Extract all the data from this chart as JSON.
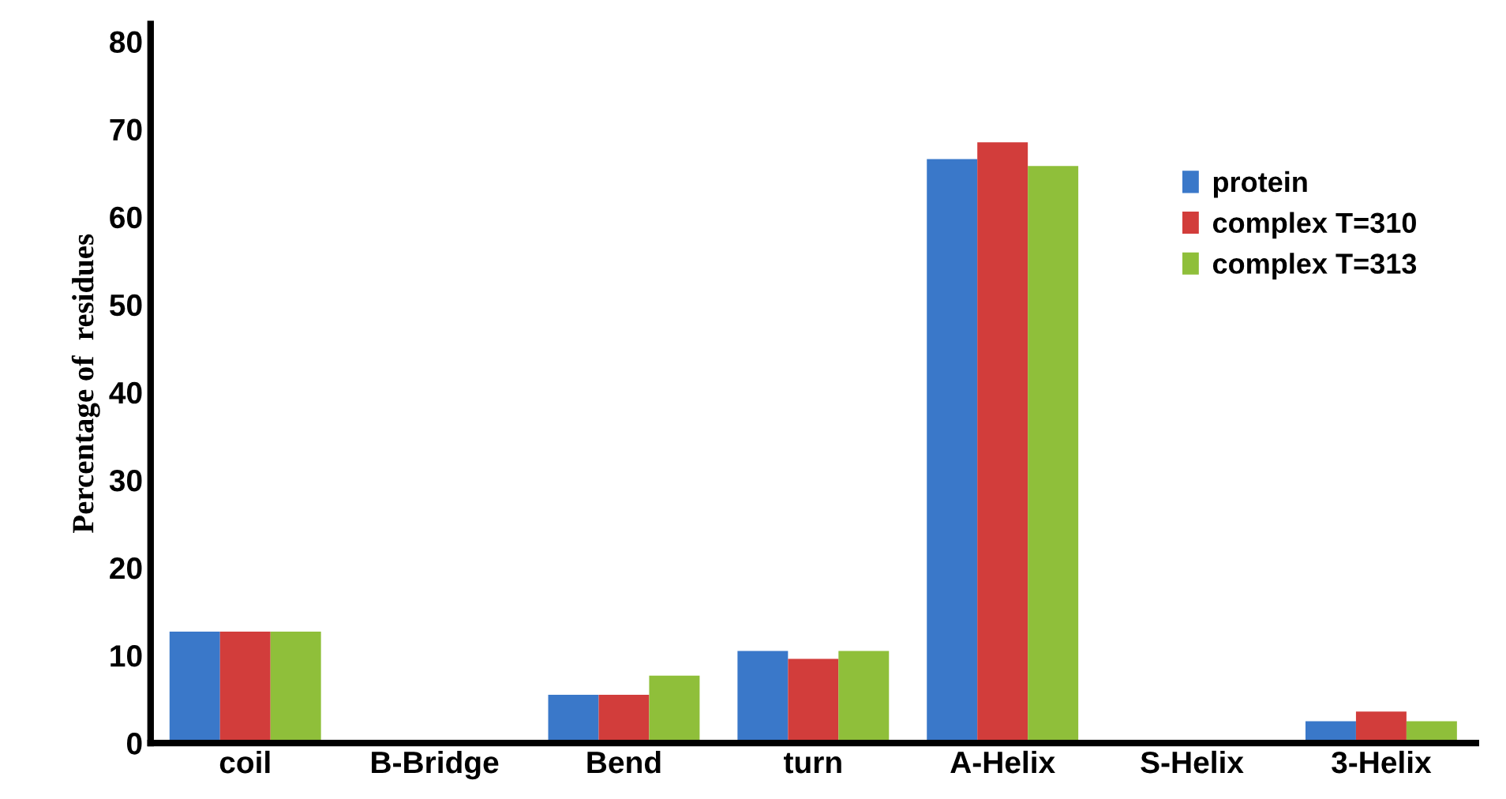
{
  "chart_data": {
    "type": "bar",
    "ylabel": "Percentage of  residues",
    "categories": [
      "coil",
      "B-Bridge",
      "Bend",
      "turn",
      "A-Helix",
      "S-Helix",
      "3-Helix"
    ],
    "series": [
      {
        "name": "protein",
        "color": "#3a78c9",
        "values": [
          12.7,
          0,
          5.5,
          10.5,
          66.6,
          0,
          2.5
        ]
      },
      {
        "name": "complex T=310",
        "color": "#d23d3b",
        "values": [
          12.7,
          0,
          5.5,
          9.6,
          68.5,
          0,
          3.6
        ]
      },
      {
        "name": "complex T=313",
        "color": "#8fbf3a",
        "values": [
          12.7,
          0,
          7.7,
          10.5,
          65.8,
          0,
          2.5
        ]
      }
    ],
    "ylim": [
      0,
      82
    ],
    "yticks": [
      0,
      10,
      20,
      30,
      40,
      50,
      60,
      70,
      80
    ],
    "grid": false,
    "legend": "right"
  }
}
